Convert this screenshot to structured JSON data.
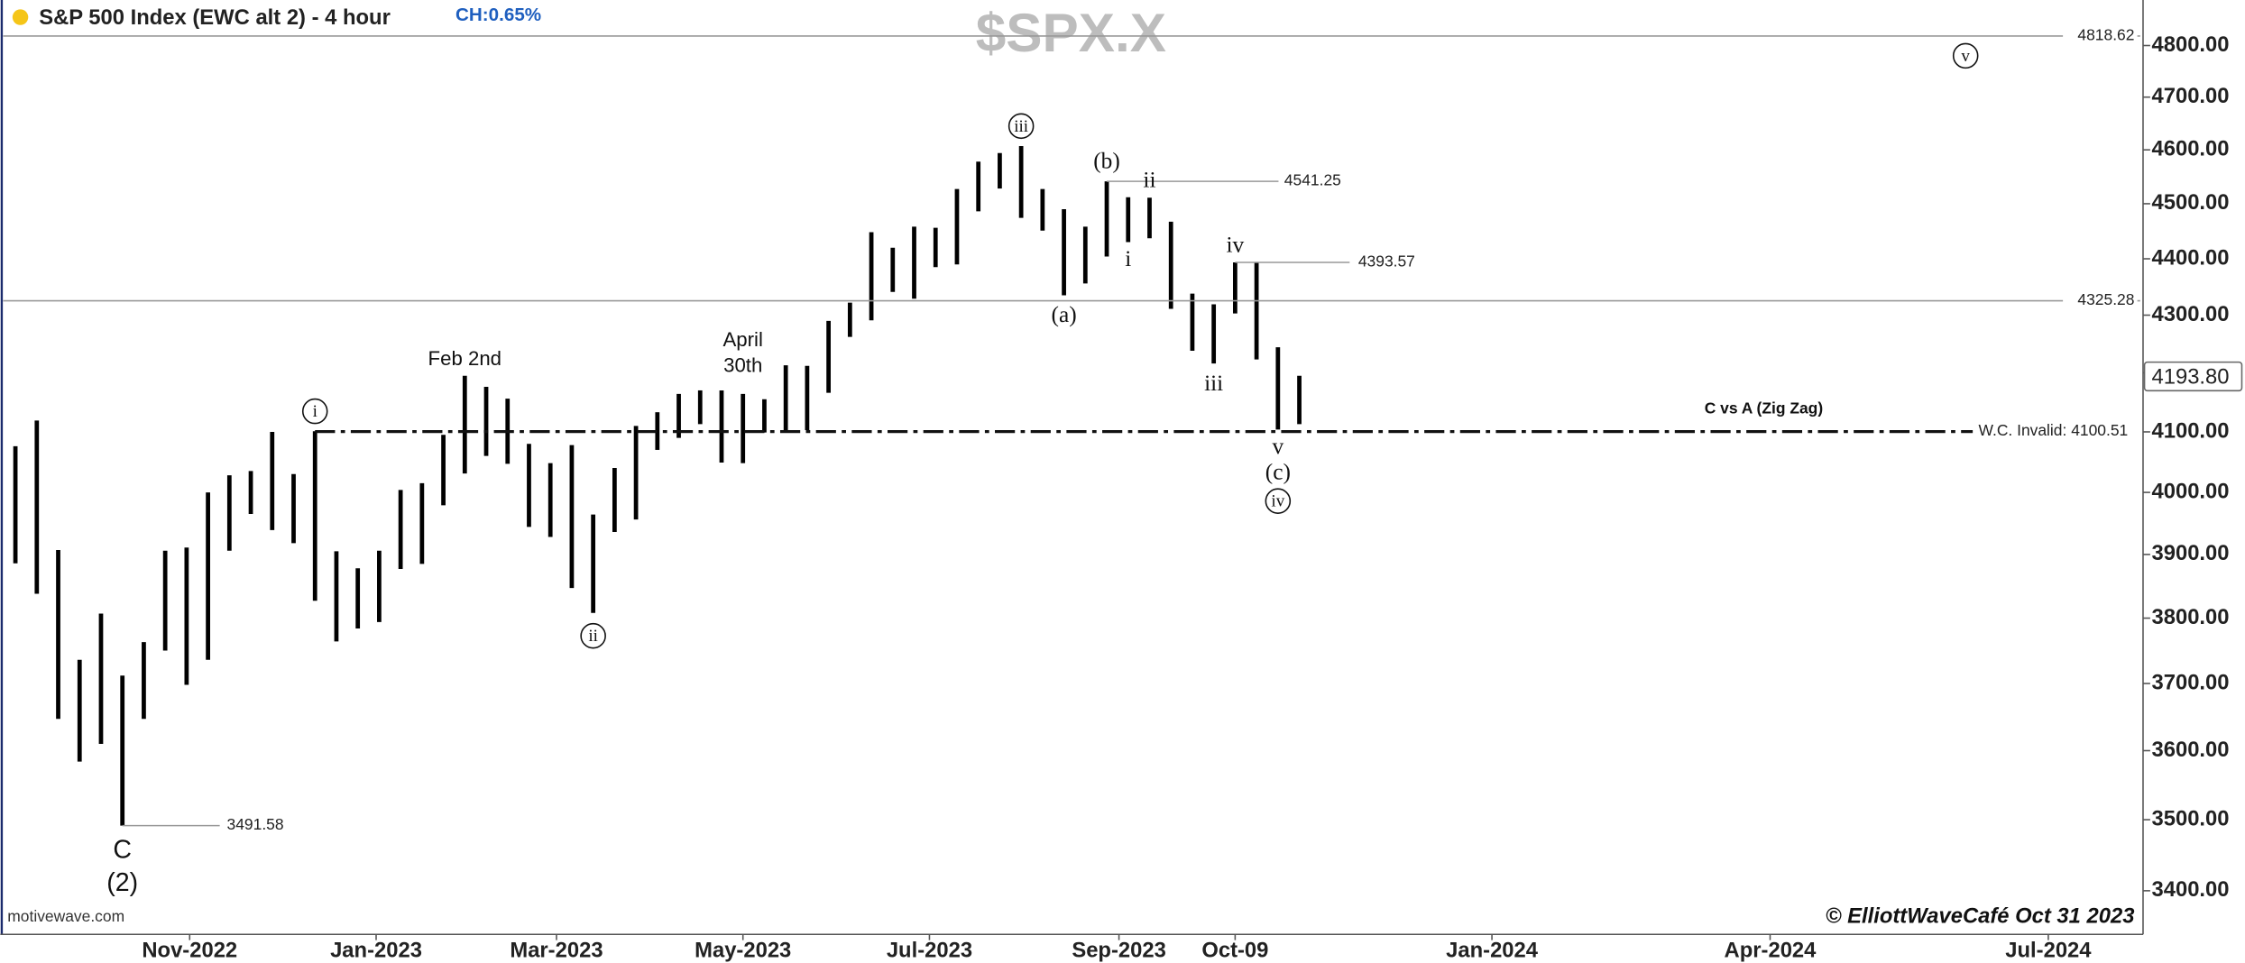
{
  "header": {
    "title": "S&P 500 Index (EWC alt 2) - 4 hour",
    "change": "CH:0.65%",
    "symbol": "$SPX.X",
    "source": "motivewave.com",
    "credit": "© ElliottWaveCafé Oct 31  2023"
  },
  "chart_data": {
    "type": "range",
    "color": "#000000",
    "log_scale": true,
    "x": [
      "2022-09-05",
      "2022-09-12",
      "2022-09-19",
      "2022-09-26",
      "2022-10-03",
      "2022-10-10",
      "2022-10-17",
      "2022-10-24",
      "2022-10-31",
      "2022-11-07",
      "2022-11-14",
      "2022-11-21",
      "2022-11-28",
      "2022-12-05",
      "2022-12-12",
      "2022-12-19",
      "2022-12-26",
      "2023-01-02",
      "2023-01-09",
      "2023-01-16",
      "2023-01-23",
      "2023-01-30",
      "2023-02-06",
      "2023-02-13",
      "2023-02-20",
      "2023-02-27",
      "2023-03-06",
      "2023-03-13",
      "2023-03-20",
      "2023-03-27",
      "2023-04-03",
      "2023-04-10",
      "2023-04-17",
      "2023-04-24",
      "2023-05-01",
      "2023-05-08",
      "2023-05-15",
      "2023-05-22",
      "2023-05-29",
      "2023-06-05",
      "2023-06-12",
      "2023-06-19",
      "2023-06-26",
      "2023-07-03",
      "2023-07-10",
      "2023-07-17",
      "2023-07-24",
      "2023-07-31",
      "2023-08-07",
      "2023-08-14",
      "2023-08-21",
      "2023-08-28",
      "2023-09-04",
      "2023-09-11",
      "2023-09-18",
      "2023-09-25",
      "2023-10-02",
      "2023-10-09",
      "2023-10-16",
      "2023-10-23",
      "2023-10-30"
    ],
    "low": [
      3886,
      3838,
      3647,
      3584,
      3610,
      3491.58,
      3647,
      3750,
      3698,
      3736,
      3906,
      3965,
      3939,
      3918,
      3827,
      3764,
      3784,
      3794,
      3877,
      3885,
      3979,
      4031,
      4060,
      4047,
      3944,
      3928,
      3847,
      3808,
      3936,
      3956,
      4070,
      4090,
      4113,
      4049,
      4048,
      4099,
      4099,
      4103,
      4166,
      4262,
      4291,
      4341,
      4329,
      4385,
      4390,
      4486,
      4528,
      4474,
      4451,
      4335,
      4356,
      4404,
      4430,
      4437,
      4311,
      4238,
      4216,
      4303,
      4223,
      4104,
      4113
    ],
    "high": [
      4076,
      4119,
      3907,
      3736,
      3807,
      3712,
      3763,
      3906,
      3911,
      4000,
      4028,
      4035,
      4100,
      4030,
      4101,
      3905,
      3878,
      3906,
      4004,
      4015,
      4095,
      4195,
      4176,
      4156,
      4080,
      4048,
      4078,
      3964,
      4040,
      4110,
      4133,
      4164,
      4170,
      4170,
      4164,
      4155,
      4213,
      4212,
      4290,
      4322,
      4448,
      4420,
      4458,
      4456,
      4527,
      4578,
      4594,
      4607,
      4527,
      4490,
      4458,
      4541.25,
      4512,
      4511,
      4467,
      4338,
      4319,
      4393.57,
      4393,
      4244,
      4195
    ],
    "ylim": [
      3340,
      4890
    ],
    "yticks": [
      {
        "value": 3400,
        "label": "3400.00"
      },
      {
        "value": 3500,
        "label": "3500.00"
      },
      {
        "value": 3600,
        "label": "3600.00"
      },
      {
        "value": 3700,
        "label": "3700.00"
      },
      {
        "value": 3800,
        "label": "3800.00"
      },
      {
        "value": 3900,
        "label": "3900.00"
      },
      {
        "value": 4000,
        "label": "4000.00"
      },
      {
        "value": 4100,
        "label": "4100.00"
      },
      {
        "value": 4200,
        "label": "4200.00"
      },
      {
        "value": 4300,
        "label": "4300.00"
      },
      {
        "value": 4400,
        "label": "4400.00"
      },
      {
        "value": 4500,
        "label": "4500.00"
      },
      {
        "value": 4600,
        "label": "4600.00"
      },
      {
        "value": 4700,
        "label": "4700.00"
      },
      {
        "value": 4800,
        "label": "4800.00"
      }
    ],
    "xlim": [
      "2022-09-01",
      "2024-08-01"
    ],
    "xticks": [
      {
        "value": "2022-11",
        "label": "Nov-2022"
      },
      {
        "value": "2023-01",
        "label": "Jan-2023"
      },
      {
        "value": "2023-03",
        "label": "Mar-2023"
      },
      {
        "value": "2023-05",
        "label": "May-2023"
      },
      {
        "value": "2023-07",
        "label": "Jul-2023"
      },
      {
        "value": "2023-09",
        "label": "Sep-2023"
      },
      {
        "value": "2023-10-09",
        "label": "Oct-09"
      },
      {
        "value": "2024-01",
        "label": "Jan-2024"
      },
      {
        "value": "2024-04",
        "label": "Apr-2024"
      },
      {
        "value": "2024-07",
        "label": "Jul-2024"
      }
    ],
    "levels": [
      {
        "value": 4818.62,
        "label": "4818.62",
        "style": "solid"
      },
      {
        "value": 4325.28,
        "label": "4325.28",
        "style": "solid"
      },
      {
        "value": 4100.51,
        "label": "W.C. Invalid: 4100.51",
        "style": "dash-dot"
      },
      {
        "value": 4541.25,
        "label": "4541.25",
        "style": "solid"
      },
      {
        "value": 4393.57,
        "label": "4393.57",
        "style": "solid"
      },
      {
        "value": 3491.58,
        "label": "3491.58",
        "style": "solid"
      }
    ],
    "last_price": {
      "value": 4193.8,
      "label": "4193.80"
    },
    "annotations": [
      {
        "text": "C"
      },
      {
        "text": "(2)"
      },
      {
        "text": "i",
        "circled": true
      },
      {
        "text": "Feb 2nd"
      },
      {
        "text": "ii",
        "circled": true
      },
      {
        "text": "April"
      },
      {
        "text": "30th"
      },
      {
        "text": "iii",
        "circled": true
      },
      {
        "text": "(a)"
      },
      {
        "text": "(b)"
      },
      {
        "text": "i"
      },
      {
        "text": "ii"
      },
      {
        "text": "iii"
      },
      {
        "text": "iv"
      },
      {
        "text": "v"
      },
      {
        "text": "(c)"
      },
      {
        "text": "iv",
        "circled": true
      },
      {
        "text": "v",
        "circled": true
      },
      {
        "text": "C vs A (Zig Zag)"
      }
    ]
  }
}
